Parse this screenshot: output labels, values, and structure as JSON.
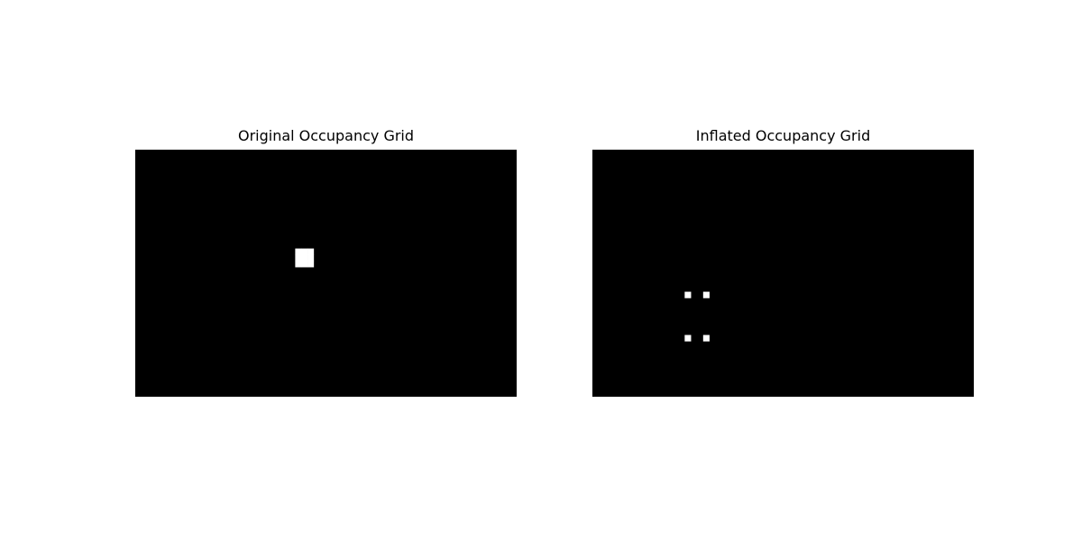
{
  "chart_data": [
    {
      "type": "heatmap",
      "title": "Original Occupancy Grid",
      "grid_shape": [
        40,
        62
      ],
      "colormap": "gray",
      "background_value": 0,
      "occupied_cells": [
        [
          16,
          26
        ],
        [
          16,
          27
        ],
        [
          16,
          28
        ],
        [
          17,
          26
        ],
        [
          17,
          27
        ],
        [
          17,
          28
        ],
        [
          18,
          26
        ],
        [
          18,
          27
        ],
        [
          18,
          28
        ]
      ],
      "colors": {
        "occupied": "#ffffff",
        "free": "#000000"
      }
    },
    {
      "type": "heatmap",
      "title": "Inflated Occupancy Grid",
      "grid_shape": [
        40,
        62
      ],
      "colormap": "gray",
      "background_value": 0,
      "occupied_cells": [
        [
          23,
          15
        ],
        [
          23,
          18
        ],
        [
          30,
          15
        ],
        [
          30,
          18
        ]
      ],
      "colors": {
        "occupied": "#ffffff",
        "free": "#000000"
      }
    }
  ]
}
